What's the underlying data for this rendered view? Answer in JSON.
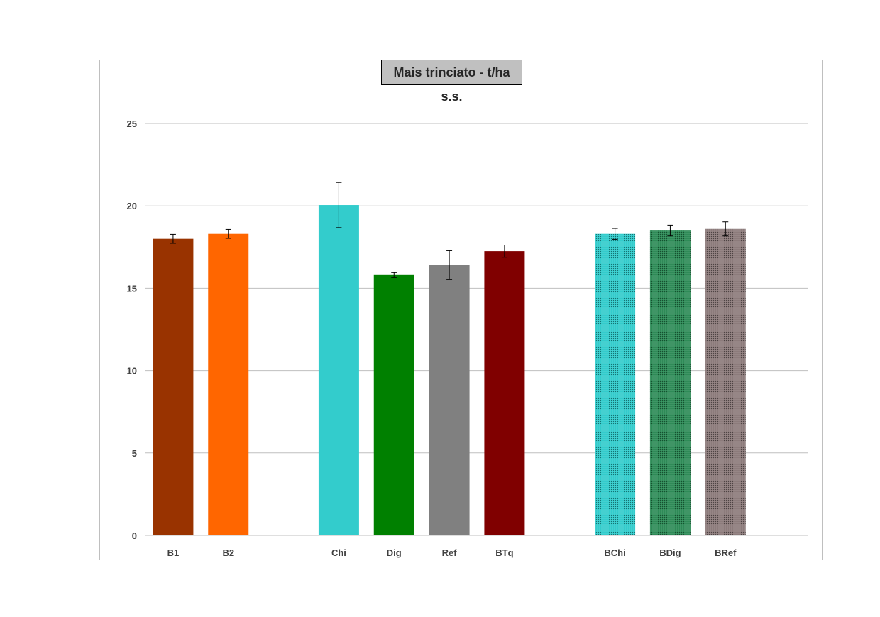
{
  "chart_data": {
    "type": "bar",
    "title": "Mais trinciato - t/ha s.s.",
    "xlabel": "",
    "ylabel": "",
    "ylim": [
      0,
      25
    ],
    "yticks": [
      0,
      5,
      10,
      15,
      20,
      25
    ],
    "grid": true,
    "categories": [
      "B1",
      "B2",
      "Chi",
      "Dig",
      "Ref",
      "BTq",
      "BChi",
      "BDig",
      "BRef"
    ],
    "values": [
      18.0,
      18.3,
      20.05,
      15.8,
      16.4,
      17.25,
      18.3,
      18.5,
      18.6
    ],
    "error": [
      0.27,
      0.27,
      1.37,
      0.15,
      0.88,
      0.37,
      0.33,
      0.33,
      0.43
    ],
    "groups": [
      [
        "B1",
        "B2"
      ],
      [
        "Chi",
        "Dig",
        "Ref",
        "BTq"
      ],
      [
        "BChi",
        "BDig",
        "BRef"
      ]
    ],
    "colors": [
      "#993300",
      "#ff6600",
      "#33cccc",
      "#008000",
      "#808080",
      "#800000",
      "#33cccc",
      "#2e8b57",
      "#8c7b7b"
    ],
    "patterned": [
      false,
      false,
      false,
      false,
      false,
      false,
      true,
      true,
      true
    ]
  }
}
